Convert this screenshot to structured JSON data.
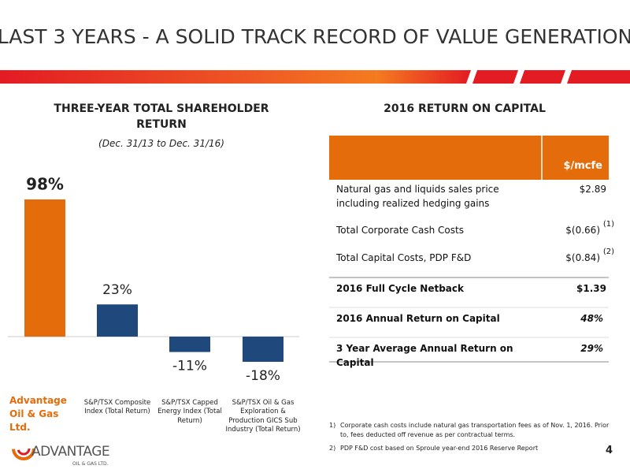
{
  "slide": {
    "title": "LAST 3 YEARS - A SOLID TRACK RECORD OF VALUE GENERATION",
    "page_number": "4",
    "logo": {
      "name": "ADVANTAGE",
      "tagline": "OIL & GAS LTD."
    }
  },
  "chart_data": {
    "type": "bar",
    "title": "THREE-YEAR TOTAL SHAREHOLDER RETURN",
    "subtitle": "(Dec. 31/13 to Dec. 31/16)",
    "categories": [
      "Advantage Oil & Gas Ltd.",
      "S&P/TSX Composite Index (Total Return)",
      "S&P/TSX Capped Energy Index (Total Return)",
      "S&P/TSX Oil & Gas Exploration & Production GICS Sub Industry (Total Return)"
    ],
    "values": [
      98,
      23,
      -11,
      -18
    ],
    "value_labels": [
      "98%",
      "23%",
      "-11%",
      "-18%"
    ],
    "colors": [
      "#e46c0a",
      "#1f497d",
      "#1f497d",
      "#1f497d"
    ]
  },
  "table": {
    "title": "2016 RETURN ON CAPITAL",
    "column_header": "$/mcfe",
    "rows": [
      {
        "label": "Natural gas and liquids sales price including realized hedging gains",
        "value": "$2.89"
      },
      {
        "label": "Total Corporate Cash Costs",
        "value": "$(0.66)",
        "note": "(1)"
      },
      {
        "label": "Total Capital Costs, PDP F&D",
        "value": "$(0.84)",
        "note": "(2)"
      },
      {
        "label": "2016 Full Cycle Netback",
        "value": "$1.39"
      },
      {
        "label": "2016 Annual Return on Capital",
        "value": "48%"
      },
      {
        "label": "3 Year Average Annual Return on Capital",
        "value": "29%"
      }
    ]
  },
  "footnotes": [
    {
      "marker": "1)",
      "text": "Corporate cash costs include natural gas transportation fees as of Nov. 1, 2016.  Prior to, fees deducted off revenue as per contractual terms."
    },
    {
      "marker": "2)",
      "text": "PDP F&D cost based on Sproule year-end 2016 Reserve Report"
    }
  ]
}
